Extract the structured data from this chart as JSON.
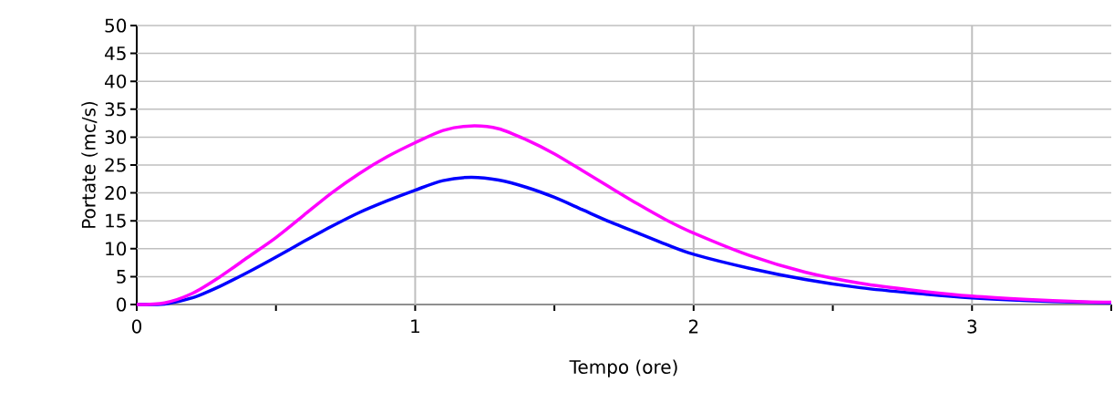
{
  "chart_data": {
    "type": "line",
    "xlabel": "Tempo (ore)",
    "ylabel": "Portate (mc/s)",
    "xlim": [
      0,
      3.5
    ],
    "ylim": [
      0,
      50
    ],
    "xticks": [
      0,
      {
        "value": 0.5,
        "label": null
      },
      1,
      {
        "value": 1.5,
        "label": null
      },
      2,
      {
        "value": 2.5,
        "label": null
      },
      3,
      {
        "value": 3.5,
        "label": null
      }
    ],
    "yticks": [
      0,
      5,
      10,
      15,
      20,
      25,
      30,
      35,
      40,
      45,
      50
    ],
    "grid": true,
    "marker": "none",
    "line_style": "solid",
    "x": [
      0,
      0.1,
      0.2,
      0.3,
      0.4,
      0.5,
      0.6,
      0.7,
      0.8,
      0.9,
      1.0,
      1.1,
      1.2,
      1.3,
      1.4,
      1.5,
      1.6,
      1.7,
      1.8,
      1.9,
      2.0,
      2.2,
      2.4,
      2.6,
      2.8,
      3.0,
      3.2,
      3.4,
      3.5
    ],
    "series": [
      {
        "color": "#ff00ff",
        "values": [
          0,
          0.3,
          2,
          5,
          8.5,
          12,
          16,
          20,
          23.5,
          26.5,
          29,
          31.2,
          32,
          31.5,
          29.5,
          27,
          24,
          21,
          18,
          15.2,
          12.8,
          8.8,
          5.8,
          3.8,
          2.5,
          1.5,
          0.9,
          0.5,
          0.4
        ]
      },
      {
        "color": "#0000ff",
        "values": [
          0,
          0.1,
          1.2,
          3.3,
          5.8,
          8.5,
          11.3,
          14,
          16.5,
          18.6,
          20.5,
          22.2,
          22.8,
          22.3,
          21,
          19.2,
          17,
          14.8,
          12.8,
          10.8,
          9,
          6.5,
          4.5,
          3,
          2,
          1.2,
          0.7,
          0.4,
          0.3
        ]
      }
    ]
  }
}
